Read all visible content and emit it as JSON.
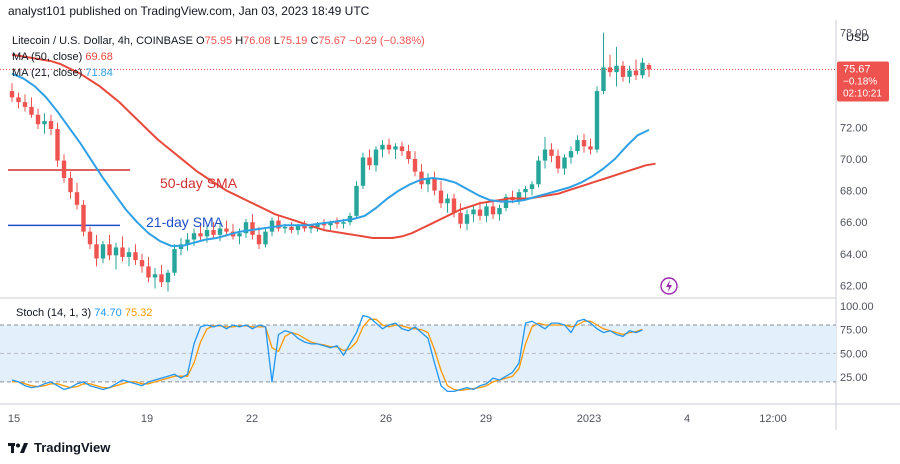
{
  "header": {
    "published_text": "analyst101 published on TradingView.com, Jan 03, 2023 18:49 UTC"
  },
  "legend": {
    "symbol": "Litecoin / U.S. Dollar, 4h, COINBASE",
    "open_label": "O",
    "open": "75.95",
    "high_label": "H",
    "high": "76.08",
    "low_label": "L",
    "low": "75.19",
    "close_label": "C",
    "close": "75.67",
    "change": "−0.29 (−0.38%)",
    "ma50_label": "MA (50, close)",
    "ma50_value": "69.68",
    "ma21_label": "MA (21, close)",
    "ma21_value": "71.84",
    "stoch_label": "Stoch (14, 1, 3)",
    "stoch_k": "74.70",
    "stoch_d": "75.32"
  },
  "annotations": {
    "sma50_text": "50-day SMA",
    "sma21_text": "21-day SMA"
  },
  "price_badge": {
    "price": "75.67",
    "change": "−0.18%",
    "countdown": "02:10:21"
  },
  "currency_label": "USD",
  "footer": {
    "brand": "TradingView"
  },
  "colors": {
    "up": "#26a69a",
    "down": "#ef5350",
    "ma50": "#e8493b",
    "ma21": "#2ea0e6",
    "stoch_k": "#2196f3",
    "stoch_d": "#ff9800",
    "stoch_band": "#e3f0fb",
    "annotation_text": "#d32f2f",
    "annotation_text_blue": "#1e50c8",
    "trendline_red": "#d32f2f",
    "trendline_blue": "#1e50c8",
    "price_badge_bg": "#ef5350"
  },
  "chart_data": {
    "type": "candlestick",
    "timeframe": "4h",
    "x_tick_labels": [
      "15",
      "19",
      "22",
      "26",
      "29",
      "2023",
      "4",
      "12:00"
    ],
    "y_ticks": [
      62,
      64,
      66,
      68,
      70,
      72,
      74,
      76,
      78
    ],
    "ylim": [
      61.2,
      78.8
    ],
    "y_tick_labels": [
      "62.00",
      "64.00",
      "66.00",
      "68.00",
      "70.00",
      "72.00",
      "74.00",
      "76.00",
      "78.00"
    ],
    "candles": [
      {
        "o": 74.3,
        "h": 74.8,
        "l": 73.6,
        "c": 73.9
      },
      {
        "o": 73.9,
        "h": 74.2,
        "l": 73.2,
        "c": 73.6
      },
      {
        "o": 73.6,
        "h": 74.1,
        "l": 73.0,
        "c": 73.3
      },
      {
        "o": 73.3,
        "h": 73.9,
        "l": 72.6,
        "c": 72.8
      },
      {
        "o": 72.8,
        "h": 73.2,
        "l": 71.9,
        "c": 72.2
      },
      {
        "o": 72.2,
        "h": 72.9,
        "l": 71.6,
        "c": 72.4
      },
      {
        "o": 72.4,
        "h": 72.8,
        "l": 71.5,
        "c": 71.9
      },
      {
        "o": 71.9,
        "h": 72.3,
        "l": 69.5,
        "c": 69.9
      },
      {
        "o": 69.9,
        "h": 70.3,
        "l": 68.5,
        "c": 68.8
      },
      {
        "o": 68.8,
        "h": 69.2,
        "l": 67.5,
        "c": 67.9
      },
      {
        "o": 67.9,
        "h": 68.5,
        "l": 66.8,
        "c": 67.1
      },
      {
        "o": 67.1,
        "h": 67.4,
        "l": 65.1,
        "c": 65.4
      },
      {
        "o": 65.4,
        "h": 65.7,
        "l": 64.3,
        "c": 64.6
      },
      {
        "o": 64.6,
        "h": 65.2,
        "l": 63.2,
        "c": 63.7
      },
      {
        "o": 63.7,
        "h": 64.8,
        "l": 63.4,
        "c": 64.6
      },
      {
        "o": 64.6,
        "h": 65.2,
        "l": 63.6,
        "c": 63.9
      },
      {
        "o": 63.9,
        "h": 64.7,
        "l": 63.0,
        "c": 64.4
      },
      {
        "o": 64.4,
        "h": 65.1,
        "l": 63.5,
        "c": 63.8
      },
      {
        "o": 63.8,
        "h": 64.4,
        "l": 63.2,
        "c": 64.1
      },
      {
        "o": 64.1,
        "h": 64.6,
        "l": 63.3,
        "c": 63.6
      },
      {
        "o": 63.6,
        "h": 64.0,
        "l": 62.8,
        "c": 63.2
      },
      {
        "o": 63.2,
        "h": 63.8,
        "l": 62.2,
        "c": 62.5
      },
      {
        "o": 62.5,
        "h": 63.1,
        "l": 61.8,
        "c": 62.7
      },
      {
        "o": 62.7,
        "h": 63.3,
        "l": 61.9,
        "c": 62.2
      },
      {
        "o": 62.2,
        "h": 63.0,
        "l": 61.6,
        "c": 62.8
      },
      {
        "o": 62.8,
        "h": 64.6,
        "l": 62.6,
        "c": 64.3
      },
      {
        "o": 64.3,
        "h": 65.0,
        "l": 63.9,
        "c": 64.6
      },
      {
        "o": 64.6,
        "h": 65.3,
        "l": 64.2,
        "c": 64.9
      },
      {
        "o": 64.9,
        "h": 65.6,
        "l": 64.5,
        "c": 65.3
      },
      {
        "o": 65.3,
        "h": 65.9,
        "l": 64.8,
        "c": 65.1
      },
      {
        "o": 65.1,
        "h": 65.8,
        "l": 64.7,
        "c": 65.5
      },
      {
        "o": 65.5,
        "h": 66.0,
        "l": 65.0,
        "c": 65.2
      },
      {
        "o": 65.2,
        "h": 65.9,
        "l": 64.8,
        "c": 65.6
      },
      {
        "o": 65.6,
        "h": 66.1,
        "l": 65.1,
        "c": 65.4
      },
      {
        "o": 65.4,
        "h": 65.9,
        "l": 64.9,
        "c": 65.1
      },
      {
        "o": 65.1,
        "h": 65.6,
        "l": 64.6,
        "c": 65.3
      },
      {
        "o": 65.3,
        "h": 66.2,
        "l": 65.0,
        "c": 66.0
      },
      {
        "o": 66.0,
        "h": 66.5,
        "l": 64.9,
        "c": 65.2
      },
      {
        "o": 65.2,
        "h": 65.7,
        "l": 64.3,
        "c": 64.6
      },
      {
        "o": 64.6,
        "h": 65.6,
        "l": 64.4,
        "c": 65.4
      },
      {
        "o": 65.4,
        "h": 66.3,
        "l": 65.1,
        "c": 66.1
      },
      {
        "o": 66.1,
        "h": 66.4,
        "l": 65.4,
        "c": 65.6
      },
      {
        "o": 65.6,
        "h": 65.9,
        "l": 65.3,
        "c": 65.7
      },
      {
        "o": 65.7,
        "h": 66.0,
        "l": 65.3,
        "c": 65.5
      },
      {
        "o": 65.5,
        "h": 65.9,
        "l": 65.2,
        "c": 65.8
      },
      {
        "o": 65.8,
        "h": 66.1,
        "l": 65.4,
        "c": 65.6
      },
      {
        "o": 65.6,
        "h": 65.9,
        "l": 65.3,
        "c": 65.7
      },
      {
        "o": 65.7,
        "h": 66.0,
        "l": 65.4,
        "c": 65.9
      },
      {
        "o": 65.9,
        "h": 66.2,
        "l": 65.5,
        "c": 65.8
      },
      {
        "o": 65.8,
        "h": 66.1,
        "l": 65.5,
        "c": 66.0
      },
      {
        "o": 66.0,
        "h": 66.3,
        "l": 65.6,
        "c": 65.9
      },
      {
        "o": 65.9,
        "h": 66.2,
        "l": 65.6,
        "c": 66.0
      },
      {
        "o": 66.0,
        "h": 66.6,
        "l": 65.8,
        "c": 66.4
      },
      {
        "o": 66.4,
        "h": 68.6,
        "l": 66.2,
        "c": 68.3
      },
      {
        "o": 68.3,
        "h": 70.4,
        "l": 68.1,
        "c": 70.1
      },
      {
        "o": 70.1,
        "h": 70.6,
        "l": 69.3,
        "c": 69.6
      },
      {
        "o": 69.6,
        "h": 70.8,
        "l": 69.2,
        "c": 70.6
      },
      {
        "o": 70.6,
        "h": 71.2,
        "l": 70.1,
        "c": 70.9
      },
      {
        "o": 70.9,
        "h": 71.3,
        "l": 70.3,
        "c": 70.6
      },
      {
        "o": 70.6,
        "h": 71.0,
        "l": 70.0,
        "c": 70.8
      },
      {
        "o": 70.8,
        "h": 71.1,
        "l": 70.2,
        "c": 70.5
      },
      {
        "o": 70.5,
        "h": 70.9,
        "l": 69.7,
        "c": 70.0
      },
      {
        "o": 70.0,
        "h": 70.5,
        "l": 68.9,
        "c": 69.2
      },
      {
        "o": 69.2,
        "h": 69.7,
        "l": 68.1,
        "c": 68.4
      },
      {
        "o": 68.4,
        "h": 69.1,
        "l": 67.9,
        "c": 68.8
      },
      {
        "o": 68.8,
        "h": 69.2,
        "l": 67.7,
        "c": 68.0
      },
      {
        "o": 68.0,
        "h": 68.6,
        "l": 66.9,
        "c": 67.2
      },
      {
        "o": 67.2,
        "h": 67.8,
        "l": 66.6,
        "c": 67.5
      },
      {
        "o": 67.5,
        "h": 67.8,
        "l": 66.3,
        "c": 66.6
      },
      {
        "o": 66.6,
        "h": 67.2,
        "l": 65.6,
        "c": 65.9
      },
      {
        "o": 65.9,
        "h": 66.8,
        "l": 65.5,
        "c": 66.5
      },
      {
        "o": 66.5,
        "h": 67.1,
        "l": 66.0,
        "c": 66.8
      },
      {
        "o": 66.8,
        "h": 67.3,
        "l": 66.1,
        "c": 66.4
      },
      {
        "o": 66.4,
        "h": 67.2,
        "l": 66.0,
        "c": 67.0
      },
      {
        "o": 67.0,
        "h": 67.4,
        "l": 66.2,
        "c": 66.5
      },
      {
        "o": 66.5,
        "h": 67.1,
        "l": 66.1,
        "c": 66.9
      },
      {
        "o": 66.9,
        "h": 67.8,
        "l": 66.7,
        "c": 67.6
      },
      {
        "o": 67.6,
        "h": 68.0,
        "l": 67.2,
        "c": 67.4
      },
      {
        "o": 67.4,
        "h": 68.1,
        "l": 67.1,
        "c": 67.9
      },
      {
        "o": 67.9,
        "h": 68.3,
        "l": 67.5,
        "c": 68.1
      },
      {
        "o": 68.1,
        "h": 68.6,
        "l": 67.7,
        "c": 68.4
      },
      {
        "o": 68.4,
        "h": 70.2,
        "l": 68.2,
        "c": 69.9
      },
      {
        "o": 69.9,
        "h": 71.4,
        "l": 69.4,
        "c": 70.6
      },
      {
        "o": 70.6,
        "h": 71.0,
        "l": 69.8,
        "c": 70.2
      },
      {
        "o": 70.2,
        "h": 70.6,
        "l": 69.1,
        "c": 69.4
      },
      {
        "o": 69.4,
        "h": 70.3,
        "l": 69.0,
        "c": 70.1
      },
      {
        "o": 70.1,
        "h": 70.8,
        "l": 69.7,
        "c": 70.5
      },
      {
        "o": 70.5,
        "h": 71.5,
        "l": 70.3,
        "c": 71.2
      },
      {
        "o": 71.2,
        "h": 71.6,
        "l": 70.4,
        "c": 70.8
      },
      {
        "o": 70.8,
        "h": 71.3,
        "l": 70.3,
        "c": 70.6
      },
      {
        "o": 70.6,
        "h": 74.6,
        "l": 70.4,
        "c": 74.3
      },
      {
        "o": 74.3,
        "h": 78.0,
        "l": 74.1,
        "c": 75.8
      },
      {
        "o": 75.8,
        "h": 76.6,
        "l": 75.2,
        "c": 75.5
      },
      {
        "o": 75.5,
        "h": 77.1,
        "l": 74.6,
        "c": 75.9
      },
      {
        "o": 75.9,
        "h": 76.2,
        "l": 74.9,
        "c": 75.2
      },
      {
        "o": 75.2,
        "h": 75.9,
        "l": 74.8,
        "c": 75.6
      },
      {
        "o": 75.6,
        "h": 76.3,
        "l": 75.0,
        "c": 75.3
      },
      {
        "o": 75.3,
        "h": 76.4,
        "l": 75.1,
        "c": 76.1
      },
      {
        "o": 75.95,
        "h": 76.08,
        "l": 75.19,
        "c": 75.67
      }
    ],
    "ma50": [
      76.6,
      76.5,
      76.4,
      76.3,
      76.2,
      76.0,
      75.7,
      75.4,
      75.0,
      74.6,
      74.1,
      73.6,
      73.0,
      72.4,
      71.8,
      71.2,
      70.7,
      70.2,
      69.7,
      69.2,
      68.8,
      68.4,
      68.0,
      67.7,
      67.4,
      67.1,
      66.8,
      66.5,
      66.3,
      66.1,
      65.9,
      65.7,
      65.5,
      65.4,
      65.3,
      65.2,
      65.1,
      65.0,
      65.0,
      65.0,
      65.1,
      65.3,
      65.6,
      65.9,
      66.2,
      66.5,
      66.8,
      67.0,
      67.2,
      67.3,
      67.4,
      67.5,
      67.5,
      67.5,
      67.6,
      67.7,
      67.8,
      68.0,
      68.2,
      68.4,
      68.6,
      68.8,
      69.0,
      69.2,
      69.4,
      69.6,
      69.7
    ],
    "ma50_start_index": 0,
    "ma50_step": 1.5,
    "ma21": [
      75.4,
      75.1,
      74.6,
      73.9,
      73.0,
      72.0,
      71.0,
      69.9,
      68.8,
      67.8,
      66.8,
      66.0,
      65.3,
      64.8,
      64.5,
      64.5,
      64.7,
      64.9,
      65.0,
      65.2,
      65.4,
      65.5,
      65.6,
      65.7,
      65.8,
      65.8,
      65.8,
      65.9,
      66.0,
      66.1,
      66.2,
      66.4,
      66.9,
      67.5,
      68.0,
      68.4,
      68.7,
      68.8,
      68.7,
      68.5,
      68.1,
      67.7,
      67.4,
      67.3,
      67.3,
      67.4,
      67.6,
      67.8,
      68.0,
      68.2,
      68.5,
      68.9,
      69.4,
      70.0,
      70.8,
      71.5,
      71.84
    ],
    "ma21_start_index": 0,
    "ma21_step": 1.75,
    "stoch": {
      "ylim": [
        0,
        100
      ],
      "y_tick_labels": [
        "25.00",
        "50.00",
        "75.00",
        "100.00"
      ],
      "y_ticks": [
        25,
        50,
        75,
        100
      ],
      "band": [
        20,
        80
      ],
      "k": [
        22,
        20,
        16,
        14,
        15,
        18,
        20,
        16,
        12,
        14,
        18,
        20,
        16,
        14,
        12,
        14,
        18,
        22,
        20,
        18,
        16,
        20,
        22,
        24,
        26,
        28,
        24,
        28,
        60,
        78,
        80,
        78,
        80,
        76,
        80,
        78,
        80,
        76,
        80,
        78,
        20,
        70,
        74,
        72,
        66,
        62,
        60,
        60,
        58,
        56,
        58,
        48,
        60,
        72,
        90,
        88,
        82,
        76,
        80,
        82,
        76,
        74,
        78,
        72,
        66,
        40,
        16,
        10,
        10,
        12,
        14,
        12,
        16,
        18,
        24,
        22,
        26,
        30,
        40,
        82,
        84,
        80,
        76,
        82,
        82,
        80,
        72,
        84,
        86,
        82,
        76,
        72,
        74,
        70,
        68,
        74,
        72,
        74.7
      ],
      "d": [
        20,
        20,
        18,
        16,
        15,
        16,
        18,
        18,
        16,
        14,
        15,
        18,
        18,
        16,
        14,
        14,
        16,
        18,
        20,
        20,
        18,
        18,
        20,
        22,
        24,
        26,
        26,
        26,
        40,
        62,
        76,
        79,
        79,
        78,
        78,
        79,
        79,
        78,
        78,
        78,
        56,
        52,
        68,
        72,
        70,
        66,
        62,
        60,
        59,
        57,
        57,
        53,
        55,
        62,
        78,
        86,
        86,
        80,
        78,
        80,
        79,
        77,
        76,
        75,
        72,
        54,
        32,
        16,
        12,
        11,
        12,
        13,
        14,
        16,
        20,
        22,
        24,
        26,
        34,
        60,
        78,
        82,
        80,
        80,
        80,
        80,
        78,
        80,
        84,
        84,
        80,
        76,
        74,
        72,
        70,
        72,
        73,
        75.32
      ]
    },
    "annotation_lines": [
      {
        "name": "50-day SMA",
        "color": "red",
        "y": 69.3
      },
      {
        "name": "21-day SMA",
        "color": "blue",
        "y": 65.8
      }
    ]
  }
}
